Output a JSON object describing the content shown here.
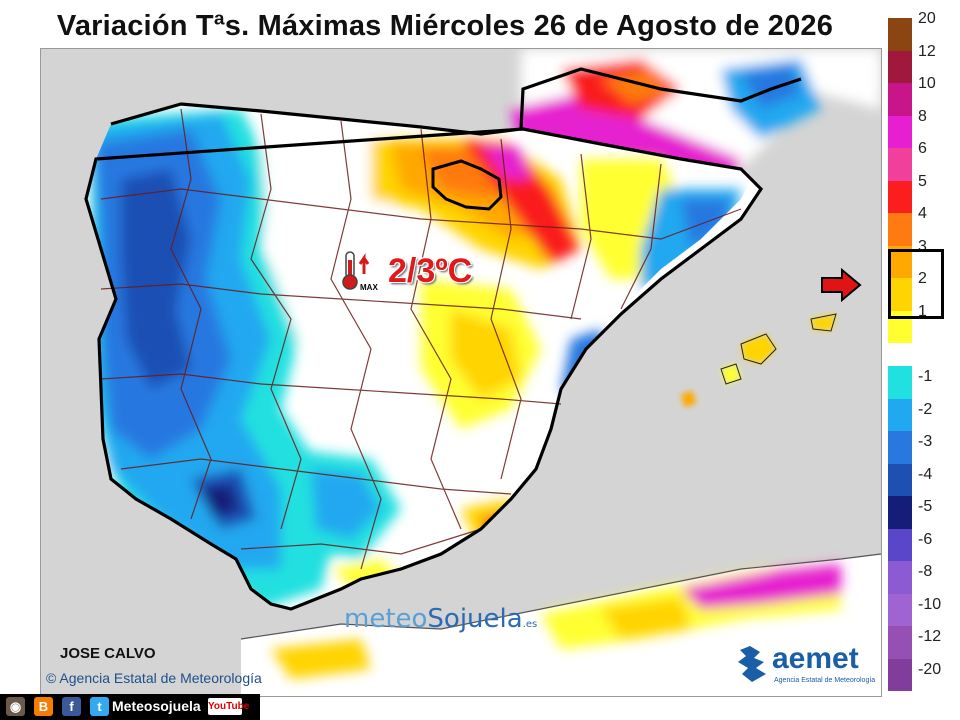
{
  "title": "Variación Tªs. Máximas Miércoles 26 de Agosto de 2026",
  "annotation": {
    "max_label": "2/3ºC",
    "thermo_sub": "MAX"
  },
  "author": "JOSE CALVO",
  "copyright": "© Agencia Estatal de Meteorología",
  "watermark": {
    "part1": "meteo",
    "part2": "Sojuela",
    "suffix": ".es"
  },
  "aemet": {
    "name": "aemet",
    "sub": "Agencia Estatal de Meteorología"
  },
  "social": {
    "handle": "Meteosojuela",
    "youtube": "YouTube"
  },
  "legend": {
    "positive": [
      {
        "label": "20",
        "color": "#8b4513"
      },
      {
        "label": "12",
        "color": "#a0183c"
      },
      {
        "label": "10",
        "color": "#c8168a"
      },
      {
        "label": "8",
        "color": "#e620d0"
      },
      {
        "label": "6",
        "color": "#f0409c"
      },
      {
        "label": "5",
        "color": "#fa1e1e"
      },
      {
        "label": "4",
        "color": "#ff7a10"
      },
      {
        "label": "3",
        "color": "#ffa800"
      },
      {
        "label": "2",
        "color": "#ffd400"
      },
      {
        "label": "1",
        "color": "#ffff30"
      }
    ],
    "negative": [
      {
        "label": "-1",
        "color": "#20e0e0"
      },
      {
        "label": "-2",
        "color": "#20a8f0"
      },
      {
        "label": "-3",
        "color": "#2878e0"
      },
      {
        "label": "-4",
        "color": "#1e50b4"
      },
      {
        "label": "-5",
        "color": "#141e78"
      },
      {
        "label": "-6",
        "color": "#5a46c8"
      },
      {
        "label": "-8",
        "color": "#8c5ad2"
      },
      {
        "label": "-10",
        "color": "#a064d2"
      },
      {
        "label": "-12",
        "color": "#9650b4"
      },
      {
        "label": "-20",
        "color": "#823c9b"
      }
    ]
  }
}
